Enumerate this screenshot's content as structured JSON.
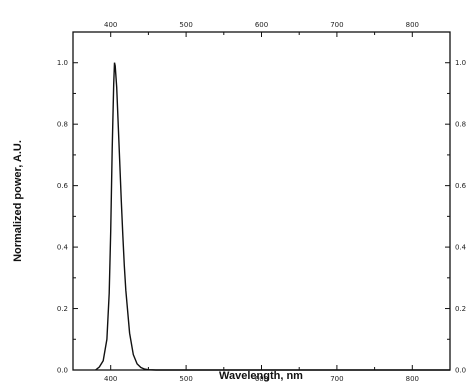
{
  "chart_data": {
    "type": "line",
    "xlabel": "Wavelength, nm",
    "ylabel": "Normalized power, A.U.",
    "xlim": [
      350,
      850
    ],
    "ylim": [
      0.0,
      1.1
    ],
    "x_ticks": [
      400,
      500,
      600,
      700,
      800
    ],
    "x_tick_labels": [
      "400",
      "500",
      "600",
      "700",
      "800"
    ],
    "y_ticks": [
      0.0,
      0.2,
      0.4,
      0.6,
      0.8,
      1.0
    ],
    "y_tick_labels": [
      "0.0",
      "0.2",
      "0.4",
      "0.6",
      "0.8",
      "1.0"
    ],
    "top_axis_tick_labels": true,
    "right_axis_tick_labels": true,
    "grid": false,
    "legend": "none",
    "series": [
      {
        "x": [
          380,
          385,
          390,
          395,
          398,
          400,
          402,
          404,
          405,
          406,
          408,
          410,
          412,
          414,
          416,
          418,
          420,
          425,
          430,
          435,
          440,
          445,
          450,
          460,
          500,
          600,
          700,
          850
        ],
        "y": [
          0.0,
          0.01,
          0.03,
          0.1,
          0.25,
          0.45,
          0.72,
          0.93,
          1.0,
          0.99,
          0.92,
          0.8,
          0.68,
          0.55,
          0.44,
          0.34,
          0.26,
          0.12,
          0.05,
          0.02,
          0.008,
          0.003,
          0.001,
          0.0,
          0.0,
          0.0,
          0.0,
          0.0
        ]
      }
    ],
    "colors": {
      "line": "#111111",
      "axes": "#111111"
    }
  }
}
